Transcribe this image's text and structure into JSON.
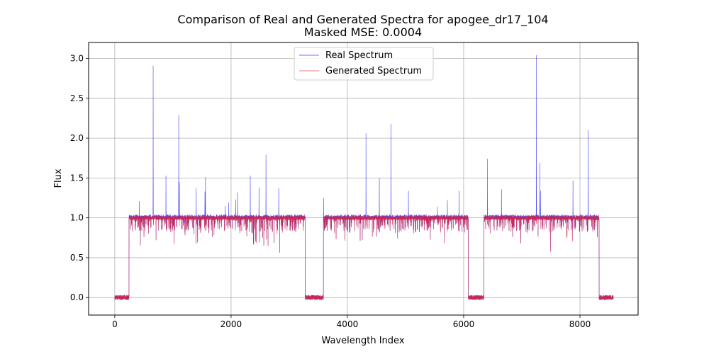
{
  "chart_data": {
    "type": "line",
    "title": "Comparison of Real and Generated Spectra for apogee_dr17_104",
    "subtitle": "Masked MSE: 0.0004",
    "xlabel": "Wavelength Index",
    "ylabel": "Flux",
    "xlim": [
      -450,
      9000
    ],
    "ylim": [
      -0.22,
      3.2
    ],
    "xticks": [
      0,
      2000,
      4000,
      6000,
      8000
    ],
    "yticks": [
      0.0,
      0.5,
      1.0,
      1.5,
      2.0,
      2.5,
      3.0
    ],
    "grid": true,
    "legend_position": "top-center",
    "series_length": 8575,
    "masked_ranges": [
      [
        0,
        245
      ],
      [
        3275,
        3590
      ],
      [
        6080,
        6350
      ],
      [
        8330,
        8575
      ]
    ],
    "series": [
      {
        "name": "Real Spectrum",
        "color": "#0000ff",
        "emission_peaks": [
          [
            420,
            1.21
          ],
          [
            660,
            2.91
          ],
          [
            880,
            1.53
          ],
          [
            1100,
            2.29
          ],
          [
            1110,
            1.45
          ],
          [
            1400,
            1.37
          ],
          [
            1560,
            1.51
          ],
          [
            1550,
            1.33
          ],
          [
            1900,
            1.15
          ],
          [
            1960,
            1.19
          ],
          [
            2080,
            1.23
          ],
          [
            2110,
            1.32
          ],
          [
            2330,
            1.53
          ],
          [
            2480,
            1.38
          ],
          [
            2600,
            1.79
          ],
          [
            2820,
            1.37
          ],
          [
            3590,
            1.25
          ],
          [
            4320,
            2.06
          ],
          [
            4550,
            1.5
          ],
          [
            4750,
            2.18
          ],
          [
            5050,
            1.34
          ],
          [
            5550,
            1.14
          ],
          [
            5720,
            1.22
          ],
          [
            5920,
            1.34
          ],
          [
            6410,
            1.74
          ],
          [
            6650,
            1.36
          ],
          [
            7250,
            3.04
          ],
          [
            7310,
            1.69
          ],
          [
            7320,
            1.34
          ],
          [
            7880,
            1.47
          ],
          [
            8140,
            2.1
          ]
        ]
      },
      {
        "name": "Generated Spectrum",
        "color": "#e8222f"
      }
    ]
  }
}
